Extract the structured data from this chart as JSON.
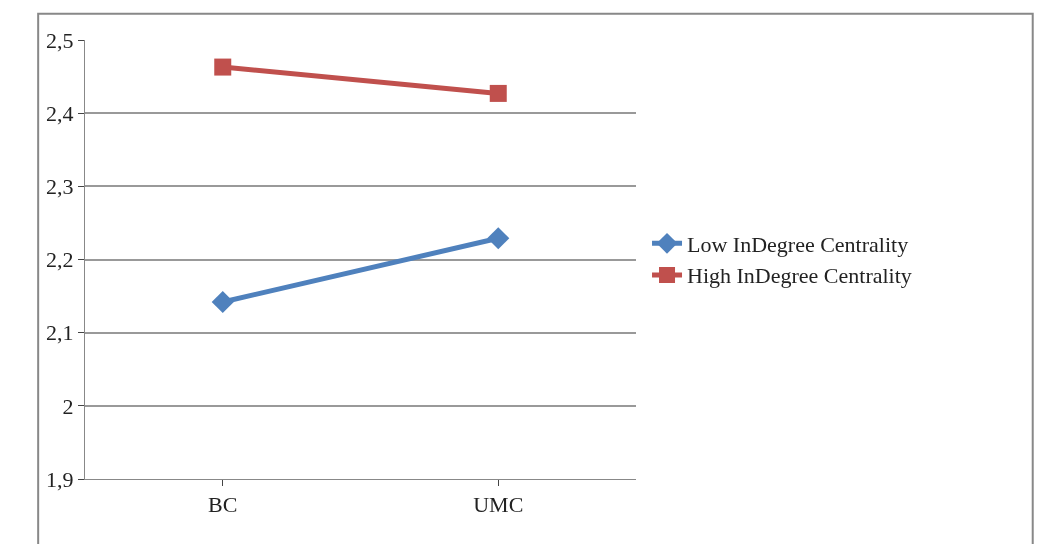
{
  "chart_data": {
    "type": "line",
    "categories": [
      "BC",
      "UMC"
    ],
    "series": [
      {
        "name": "Low InDegree Centrality",
        "color": "#4f81bd",
        "marker": "diamond",
        "values": [
          2.142,
          2.229
        ]
      },
      {
        "name": "High InDegree Centrality",
        "color": "#c0504d",
        "marker": "square",
        "values": [
          2.463,
          2.427
        ]
      }
    ],
    "ylim": [
      1.9,
      2.5
    ],
    "yticks": [
      {
        "value": 1.9,
        "label": "1,9"
      },
      {
        "value": 2,
        "label": "2"
      },
      {
        "value": 2.1,
        "label": "2,1"
      },
      {
        "value": 2.2,
        "label": "2,2"
      },
      {
        "value": 2.3,
        "label": "2,3"
      },
      {
        "value": 2.4,
        "label": "2,4"
      },
      {
        "value": 2.5,
        "label": "2,5"
      }
    ],
    "grid": "y",
    "legend": "right",
    "line_style": "solid"
  }
}
